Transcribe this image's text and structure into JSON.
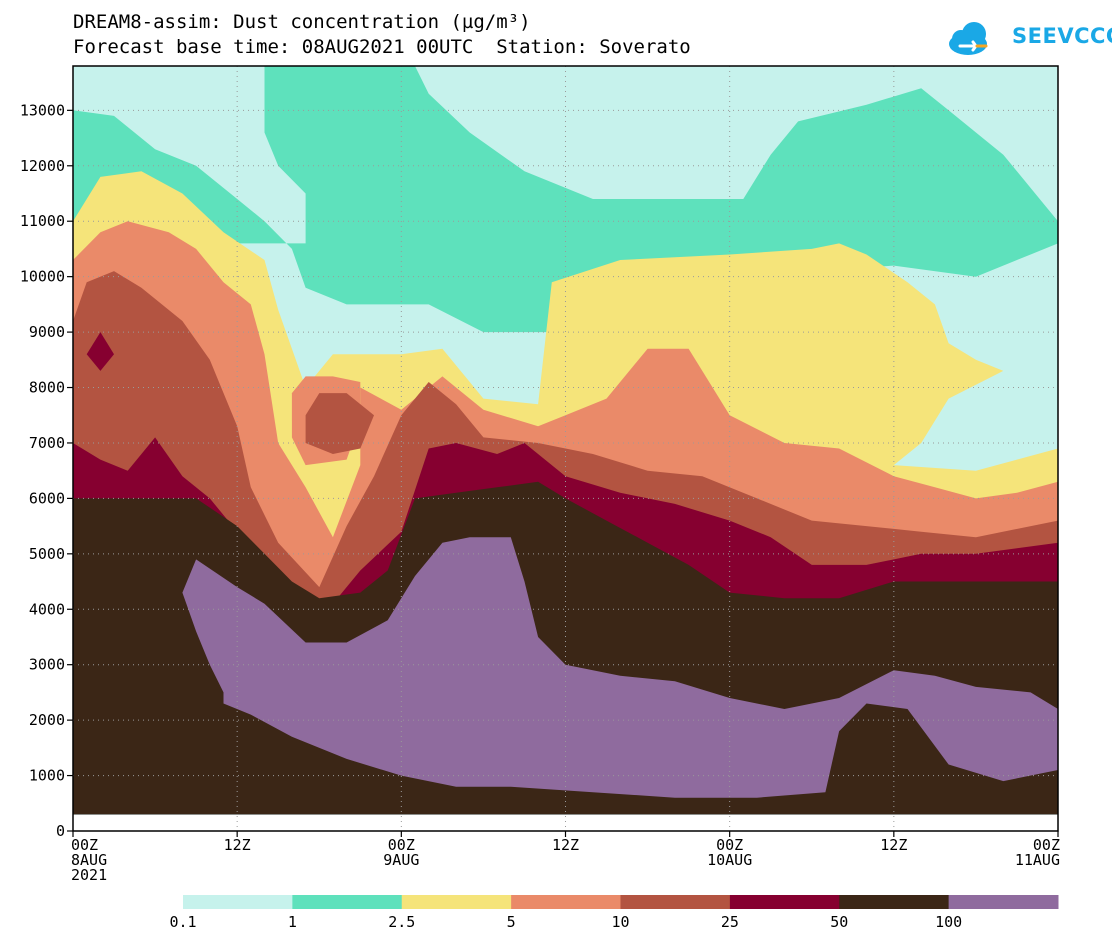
{
  "header": {
    "title_line1": "DREAM8-assim: Dust concentration (µg/m³)",
    "title_line2": "Forecast base time: 08AUG2021 00UTC  Station: Soverato"
  },
  "logo": {
    "text": "SEEVCCC",
    "icon": "cloud-icon"
  },
  "chart_data": {
    "type": "heatmap",
    "title": "DREAM8-assim: Dust concentration (µg/m³)",
    "subtitle": "Forecast base time: 08AUG2021 00UTC  Station: Soverato",
    "xlabel": "",
    "ylabel": "",
    "x_range_hours": [
      0,
      72
    ],
    "ylim": [
      0,
      13800
    ],
    "grid": true,
    "legend_placement": "bottom",
    "x_ticks": [
      {
        "hour": 0,
        "lines": [
          "00Z",
          "8AUG",
          "2021"
        ]
      },
      {
        "hour": 12,
        "lines": [
          "12Z"
        ]
      },
      {
        "hour": 24,
        "lines": [
          "00Z",
          "9AUG"
        ]
      },
      {
        "hour": 36,
        "lines": [
          "12Z"
        ]
      },
      {
        "hour": 48,
        "lines": [
          "00Z",
          "10AUG"
        ]
      },
      {
        "hour": 60,
        "lines": [
          "12Z"
        ]
      },
      {
        "hour": 72,
        "lines": [
          "00Z",
          "11AUG"
        ]
      }
    ],
    "y_ticks": [
      0,
      1000,
      2000,
      3000,
      4000,
      5000,
      6000,
      7000,
      8000,
      9000,
      10000,
      11000,
      12000,
      13000
    ],
    "levels": [
      {
        "label": "0.1",
        "color": "#c6f2ec"
      },
      {
        "label": "1",
        "color": "#5ee1bc"
      },
      {
        "label": "2.5",
        "color": "#f5e47a"
      },
      {
        "label": "5",
        "color": "#ea8a69"
      },
      {
        "label": "10",
        "color": "#b35441"
      },
      {
        "label": "25",
        "color": "#860030"
      },
      {
        "label": "50",
        "color": "#3b2616"
      },
      {
        "label": "100",
        "color": "#8f6b9e"
      }
    ],
    "bands": [
      {
        "level": 1,
        "points": [
          [
            0,
            13000
          ],
          [
            3,
            12900
          ],
          [
            6,
            12300
          ],
          [
            9,
            12000
          ],
          [
            12,
            11400
          ],
          [
            14,
            11000
          ],
          [
            16,
            10500
          ],
          [
            17,
            9800
          ],
          [
            20,
            9500
          ],
          [
            26,
            9500
          ],
          [
            30,
            9000
          ],
          [
            34,
            9000
          ],
          [
            38,
            9000
          ],
          [
            44,
            8300
          ],
          [
            50,
            9600
          ],
          [
            54,
            10100
          ],
          [
            60,
            10200
          ],
          [
            66,
            10000
          ],
          [
            72,
            10600
          ],
          [
            72,
            11000
          ],
          [
            71,
            11300
          ],
          [
            68,
            12200
          ],
          [
            64,
            13000
          ],
          [
            62,
            13400
          ],
          [
            58,
            13100
          ],
          [
            53,
            12800
          ],
          [
            51,
            12200
          ],
          [
            49,
            11400
          ],
          [
            45,
            11400
          ],
          [
            41,
            11400
          ],
          [
            38,
            11400
          ],
          [
            33,
            11900
          ],
          [
            29,
            12600
          ],
          [
            26,
            13300
          ],
          [
            25,
            13800
          ],
          [
            14,
            13800
          ],
          [
            14,
            12600
          ],
          [
            15,
            12000
          ],
          [
            17,
            11500
          ],
          [
            17,
            10600
          ],
          [
            0,
            10600
          ]
        ]
      },
      {
        "level": 2,
        "points": [
          [
            0,
            11000
          ],
          [
            2,
            11800
          ],
          [
            5,
            11900
          ],
          [
            8,
            11500
          ],
          [
            11,
            10800
          ],
          [
            14,
            10300
          ],
          [
            15,
            9400
          ],
          [
            17,
            8000
          ],
          [
            19,
            8600
          ],
          [
            24,
            8600
          ],
          [
            27,
            8700
          ],
          [
            30,
            7800
          ],
          [
            34,
            7700
          ],
          [
            35,
            9900
          ],
          [
            40,
            10300
          ],
          [
            48,
            10400
          ],
          [
            54,
            10500
          ],
          [
            56,
            10600
          ],
          [
            58,
            10400
          ],
          [
            61,
            9900
          ],
          [
            63,
            9500
          ],
          [
            64,
            8800
          ],
          [
            66,
            8500
          ],
          [
            68,
            8300
          ],
          [
            64,
            7800
          ],
          [
            62,
            7000
          ],
          [
            60,
            6600
          ],
          [
            66,
            6500
          ],
          [
            72,
            6900
          ],
          [
            72,
            3000
          ],
          [
            0,
            3000
          ]
        ]
      },
      {
        "level": 3,
        "points": [
          [
            0,
            10300
          ],
          [
            2,
            10800
          ],
          [
            4,
            11000
          ],
          [
            7,
            10800
          ],
          [
            9,
            10500
          ],
          [
            11,
            9900
          ],
          [
            13,
            9500
          ],
          [
            14,
            8600
          ],
          [
            15,
            7000
          ],
          [
            17,
            6200
          ],
          [
            19,
            5300
          ],
          [
            21,
            6600
          ],
          [
            21,
            8000
          ],
          [
            24,
            7600
          ],
          [
            27,
            8200
          ],
          [
            30,
            7600
          ],
          [
            34,
            7300
          ],
          [
            36,
            7500
          ],
          [
            39,
            7800
          ],
          [
            42,
            8700
          ],
          [
            45,
            8700
          ],
          [
            48,
            7500
          ],
          [
            52,
            7000
          ],
          [
            56,
            6900
          ],
          [
            60,
            6400
          ],
          [
            63,
            6200
          ],
          [
            66,
            6000
          ],
          [
            69,
            6100
          ],
          [
            72,
            6300
          ],
          [
            72,
            3000
          ],
          [
            0,
            3000
          ]
        ]
      },
      {
        "level": 3,
        "points": [
          [
            16,
            7900
          ],
          [
            17,
            8200
          ],
          [
            19,
            8200
          ],
          [
            21,
            8100
          ],
          [
            21,
            7400
          ],
          [
            20,
            6700
          ],
          [
            17,
            6600
          ],
          [
            16,
            7100
          ]
        ]
      },
      {
        "level": 4,
        "points": [
          [
            0,
            9200
          ],
          [
            1,
            9900
          ],
          [
            3,
            10100
          ],
          [
            5,
            9800
          ],
          [
            8,
            9200
          ],
          [
            10,
            8500
          ],
          [
            12,
            7300
          ],
          [
            13,
            6200
          ],
          [
            15,
            5200
          ],
          [
            18,
            4400
          ],
          [
            20,
            5500
          ],
          [
            22,
            6400
          ],
          [
            24,
            7500
          ],
          [
            26,
            8100
          ],
          [
            28,
            7700
          ],
          [
            30,
            7100
          ],
          [
            34,
            7000
          ],
          [
            38,
            6800
          ],
          [
            42,
            6500
          ],
          [
            46,
            6400
          ],
          [
            50,
            6000
          ],
          [
            54,
            5600
          ],
          [
            58,
            5500
          ],
          [
            62,
            5400
          ],
          [
            66,
            5300
          ],
          [
            72,
            5600
          ],
          [
            72,
            3000
          ],
          [
            0,
            3000
          ]
        ]
      },
      {
        "level": 4,
        "points": [
          [
            17,
            7500
          ],
          [
            18,
            7900
          ],
          [
            20,
            7900
          ],
          [
            22,
            7500
          ],
          [
            21,
            6900
          ],
          [
            19,
            6800
          ],
          [
            17,
            7000
          ]
        ]
      },
      {
        "level": 5,
        "points": [
          [
            1,
            8600
          ],
          [
            2,
            9000
          ],
          [
            3,
            8600
          ],
          [
            2,
            8300
          ]
        ]
      },
      {
        "level": 5,
        "points": [
          [
            0,
            7000
          ],
          [
            2,
            6700
          ],
          [
            4,
            6500
          ],
          [
            6,
            7100
          ],
          [
            8,
            6400
          ],
          [
            10,
            6000
          ],
          [
            12,
            5400
          ],
          [
            14,
            4800
          ],
          [
            16,
            4300
          ],
          [
            19,
            4100
          ],
          [
            21,
            4700
          ],
          [
            24,
            5400
          ],
          [
            26,
            6900
          ],
          [
            28,
            7000
          ],
          [
            31,
            6800
          ],
          [
            33,
            7000
          ],
          [
            36,
            6400
          ],
          [
            40,
            6100
          ],
          [
            44,
            5900
          ],
          [
            48,
            5600
          ],
          [
            51,
            5300
          ],
          [
            54,
            4800
          ],
          [
            58,
            4800
          ],
          [
            62,
            5000
          ],
          [
            66,
            5000
          ],
          [
            72,
            5200
          ],
          [
            72,
            300
          ],
          [
            0,
            300
          ]
        ]
      },
      {
        "level": 6,
        "points": [
          [
            0,
            6000
          ],
          [
            3,
            6000
          ],
          [
            6,
            6000
          ],
          [
            9,
            6000
          ],
          [
            12,
            5500
          ],
          [
            14,
            5000
          ],
          [
            16,
            4500
          ],
          [
            18,
            4200
          ],
          [
            21,
            4300
          ],
          [
            23,
            4700
          ],
          [
            25,
            6000
          ],
          [
            28,
            6100
          ],
          [
            31,
            6200
          ],
          [
            34,
            6300
          ],
          [
            36,
            6000
          ],
          [
            39,
            5600
          ],
          [
            42,
            5200
          ],
          [
            45,
            4800
          ],
          [
            48,
            4300
          ],
          [
            52,
            4200
          ],
          [
            56,
            4200
          ],
          [
            60,
            4500
          ],
          [
            64,
            4500
          ],
          [
            72,
            4500
          ],
          [
            72,
            300
          ],
          [
            0,
            300
          ]
        ]
      },
      {
        "level": 7,
        "points": [
          [
            9,
            4900
          ],
          [
            12,
            4400
          ],
          [
            14,
            4100
          ],
          [
            17,
            3400
          ],
          [
            20,
            3400
          ],
          [
            23,
            3800
          ],
          [
            25,
            4600
          ],
          [
            27,
            5200
          ],
          [
            29,
            5300
          ],
          [
            32,
            5300
          ],
          [
            33,
            4500
          ],
          [
            34,
            3500
          ],
          [
            36,
            3000
          ],
          [
            40,
            2800
          ],
          [
            44,
            2700
          ],
          [
            48,
            2400
          ],
          [
            52,
            2200
          ],
          [
            56,
            2400
          ],
          [
            60,
            2900
          ],
          [
            63,
            2800
          ],
          [
            66,
            2600
          ],
          [
            70,
            2500
          ],
          [
            72,
            2200
          ],
          [
            72,
            1100
          ],
          [
            68,
            900
          ],
          [
            64,
            1200
          ],
          [
            61,
            2200
          ],
          [
            58,
            2300
          ],
          [
            56,
            1800
          ],
          [
            55,
            700
          ],
          [
            50,
            600
          ],
          [
            44,
            600
          ],
          [
            38,
            700
          ],
          [
            32,
            800
          ],
          [
            28,
            800
          ],
          [
            24,
            1000
          ],
          [
            20,
            1300
          ],
          [
            16,
            1700
          ],
          [
            13,
            2100
          ],
          [
            11,
            2300
          ],
          [
            11,
            2500
          ],
          [
            10,
            3000
          ],
          [
            9,
            3600
          ],
          [
            8,
            4300
          ]
        ]
      }
    ]
  }
}
